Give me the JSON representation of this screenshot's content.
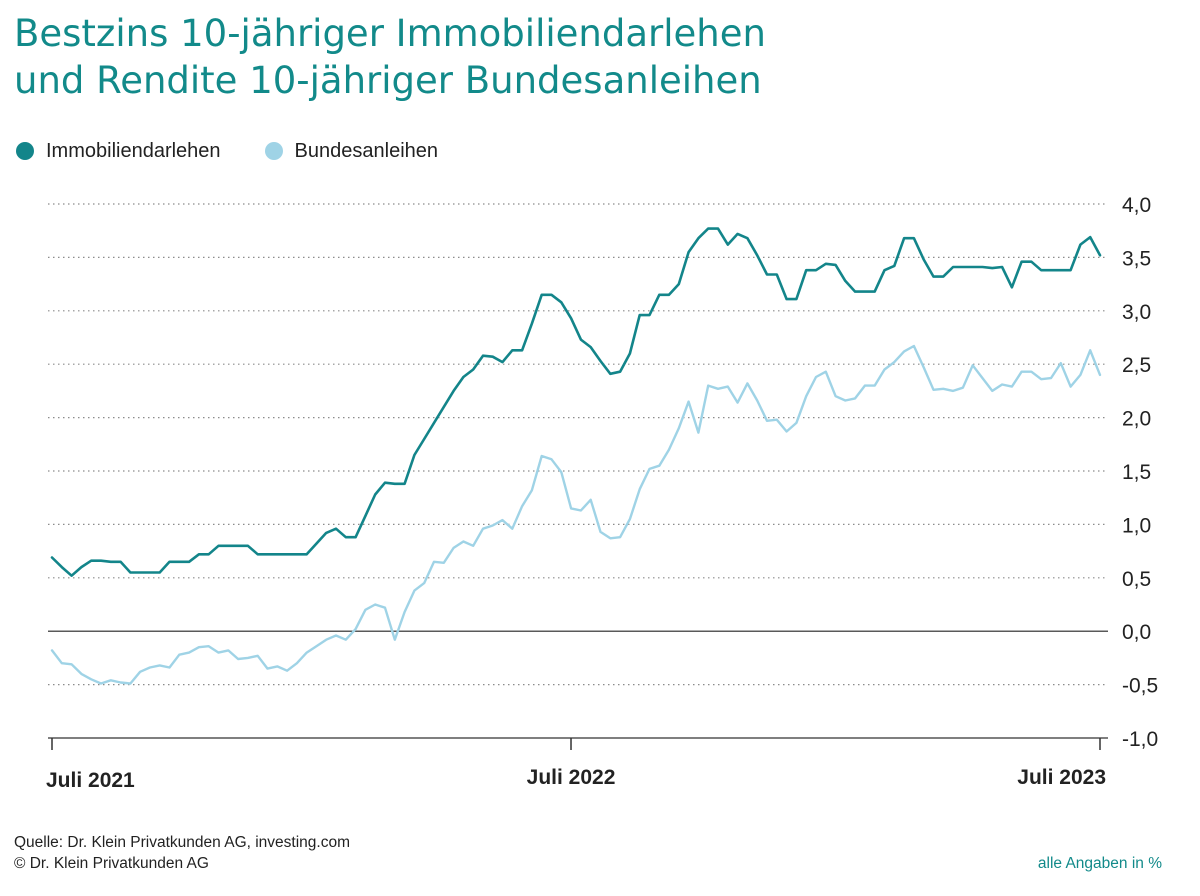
{
  "title": {
    "line1": "Bestzins 10-jähriger Immobiliendarlehen",
    "line2": "und Rendite 10-jähriger Bundesanleihen"
  },
  "colors": {
    "title": "#128a8a",
    "series_dark": "#13858a",
    "series_light": "#9fd3e6",
    "grid": "#8c8c8c",
    "zero_line": "#222222"
  },
  "footer": {
    "source": "Quelle: Dr. Klein Privatkunden AG, investing.com",
    "copyright": "© Dr. Klein Privatkunden AG",
    "unit_note": "alle Angaben in %"
  },
  "chart_data": {
    "type": "line",
    "legend_position": "top-left",
    "grid": "horizontal dotted",
    "x_ticks": [
      {
        "label": "Juli 2021",
        "week": 0
      },
      {
        "label": "Juli 2022",
        "week": 52
      },
      {
        "label": "Juli 2023",
        "week": 105
      }
    ],
    "y_ticks": [
      "4,0",
      "3,5",
      "3,0",
      "2,5",
      "2,0",
      "1,5",
      "1,0",
      "0,5",
      "0,0",
      "-0,5",
      "-1,0"
    ],
    "ylim": [
      -1.0,
      4.0
    ],
    "xlim": [
      0,
      105
    ],
    "series": [
      {
        "name": "Immobiliendarlehen",
        "color": "#13858a",
        "points": [
          [
            0,
            0.69
          ],
          [
            1,
            0.6
          ],
          [
            2,
            0.52
          ],
          [
            3,
            0.6
          ],
          [
            4,
            0.66
          ],
          [
            5,
            0.66
          ],
          [
            6,
            0.65
          ],
          [
            7,
            0.65
          ],
          [
            8,
            0.55
          ],
          [
            9,
            0.55
          ],
          [
            10,
            0.55
          ],
          [
            11,
            0.55
          ],
          [
            12,
            0.65
          ],
          [
            13,
            0.65
          ],
          [
            14,
            0.65
          ],
          [
            15,
            0.72
          ],
          [
            16,
            0.72
          ],
          [
            17,
            0.8
          ],
          [
            18,
            0.8
          ],
          [
            19,
            0.8
          ],
          [
            20,
            0.8
          ],
          [
            21,
            0.72
          ],
          [
            22,
            0.72
          ],
          [
            23,
            0.72
          ],
          [
            24,
            0.72
          ],
          [
            25,
            0.72
          ],
          [
            26,
            0.72
          ],
          [
            27,
            0.82
          ],
          [
            28,
            0.92
          ],
          [
            29,
            0.96
          ],
          [
            30,
            0.88
          ],
          [
            31,
            0.88
          ],
          [
            32,
            1.08
          ],
          [
            33,
            1.28
          ],
          [
            34,
            1.39
          ],
          [
            35,
            1.38
          ],
          [
            36,
            1.38
          ],
          [
            37,
            1.65
          ],
          [
            38,
            1.8
          ],
          [
            39,
            1.95
          ],
          [
            40,
            2.1
          ],
          [
            41,
            2.25
          ],
          [
            42,
            2.38
          ],
          [
            43,
            2.45
          ],
          [
            44,
            2.58
          ],
          [
            45,
            2.57
          ],
          [
            46,
            2.52
          ],
          [
            47,
            2.63
          ],
          [
            48,
            2.63
          ],
          [
            49,
            2.88
          ],
          [
            50,
            3.15
          ],
          [
            51,
            3.15
          ],
          [
            52,
            3.08
          ],
          [
            53,
            2.93
          ],
          [
            54,
            2.73
          ],
          [
            55,
            2.66
          ],
          [
            56,
            2.53
          ],
          [
            57,
            2.41
          ],
          [
            58,
            2.43
          ],
          [
            59,
            2.6
          ],
          [
            60,
            2.96
          ],
          [
            61,
            2.96
          ],
          [
            62,
            3.15
          ],
          [
            63,
            3.15
          ],
          [
            64,
            3.25
          ],
          [
            65,
            3.55
          ],
          [
            66,
            3.68
          ],
          [
            67,
            3.77
          ],
          [
            68,
            3.77
          ],
          [
            69,
            3.62
          ],
          [
            70,
            3.72
          ],
          [
            71,
            3.68
          ],
          [
            72,
            3.52
          ],
          [
            73,
            3.34
          ],
          [
            74,
            3.34
          ],
          [
            75,
            3.11
          ],
          [
            76,
            3.11
          ],
          [
            77,
            3.38
          ],
          [
            78,
            3.38
          ],
          [
            79,
            3.44
          ],
          [
            80,
            3.43
          ],
          [
            81,
            3.28
          ],
          [
            82,
            3.18
          ],
          [
            83,
            3.18
          ],
          [
            84,
            3.18
          ],
          [
            85,
            3.38
          ],
          [
            86,
            3.42
          ],
          [
            87,
            3.68
          ],
          [
            88,
            3.68
          ],
          [
            89,
            3.48
          ],
          [
            90,
            3.32
          ],
          [
            91,
            3.32
          ],
          [
            92,
            3.41
          ],
          [
            93,
            3.41
          ],
          [
            94,
            3.41
          ],
          [
            95,
            3.41
          ],
          [
            96,
            3.4
          ],
          [
            97,
            3.41
          ],
          [
            98,
            3.22
          ],
          [
            99,
            3.46
          ],
          [
            100,
            3.46
          ],
          [
            101,
            3.38
          ],
          [
            102,
            3.38
          ],
          [
            103,
            3.38
          ],
          [
            104,
            3.38
          ],
          [
            105,
            3.62
          ],
          [
            106,
            3.69
          ],
          [
            107,
            3.52
          ]
        ]
      },
      {
        "name": "Bundesanleihen",
        "color": "#9fd3e6",
        "points": [
          [
            0,
            -0.18
          ],
          [
            1,
            -0.3
          ],
          [
            2,
            -0.31
          ],
          [
            3,
            -0.4
          ],
          [
            4,
            -0.45
          ],
          [
            5,
            -0.49
          ],
          [
            6,
            -0.46
          ],
          [
            7,
            -0.48
          ],
          [
            8,
            -0.49
          ],
          [
            9,
            -0.38
          ],
          [
            10,
            -0.34
          ],
          [
            11,
            -0.32
          ],
          [
            12,
            -0.34
          ],
          [
            13,
            -0.22
          ],
          [
            14,
            -0.2
          ],
          [
            15,
            -0.15
          ],
          [
            16,
            -0.14
          ],
          [
            17,
            -0.2
          ],
          [
            18,
            -0.18
          ],
          [
            19,
            -0.26
          ],
          [
            20,
            -0.25
          ],
          [
            21,
            -0.23
          ],
          [
            22,
            -0.35
          ],
          [
            23,
            -0.33
          ],
          [
            24,
            -0.37
          ],
          [
            25,
            -0.3
          ],
          [
            26,
            -0.2
          ],
          [
            27,
            -0.14
          ],
          [
            28,
            -0.08
          ],
          [
            29,
            -0.04
          ],
          [
            30,
            -0.08
          ],
          [
            31,
            0.02
          ],
          [
            32,
            0.2
          ],
          [
            33,
            0.25
          ],
          [
            34,
            0.22
          ],
          [
            35,
            -0.08
          ],
          [
            36,
            0.18
          ],
          [
            37,
            0.38
          ],
          [
            38,
            0.45
          ],
          [
            39,
            0.65
          ],
          [
            40,
            0.64
          ],
          [
            41,
            0.78
          ],
          [
            42,
            0.84
          ],
          [
            43,
            0.8
          ],
          [
            44,
            0.96
          ],
          [
            45,
            0.99
          ],
          [
            46,
            1.04
          ],
          [
            47,
            0.96
          ],
          [
            48,
            1.17
          ],
          [
            49,
            1.32
          ],
          [
            50,
            1.64
          ],
          [
            51,
            1.61
          ],
          [
            52,
            1.49
          ],
          [
            53,
            1.15
          ],
          [
            54,
            1.13
          ],
          [
            55,
            1.23
          ],
          [
            56,
            0.93
          ],
          [
            57,
            0.87
          ],
          [
            58,
            0.88
          ],
          [
            59,
            1.05
          ],
          [
            60,
            1.33
          ],
          [
            61,
            1.52
          ],
          [
            62,
            1.55
          ],
          [
            63,
            1.7
          ],
          [
            64,
            1.9
          ],
          [
            65,
            2.15
          ],
          [
            66,
            1.86
          ],
          [
            67,
            2.3
          ],
          [
            68,
            2.27
          ],
          [
            69,
            2.29
          ],
          [
            70,
            2.14
          ],
          [
            71,
            2.32
          ],
          [
            72,
            2.16
          ],
          [
            73,
            1.97
          ],
          [
            74,
            1.98
          ],
          [
            75,
            1.87
          ],
          [
            76,
            1.95
          ],
          [
            77,
            2.2
          ],
          [
            78,
            2.38
          ],
          [
            79,
            2.43
          ],
          [
            80,
            2.2
          ],
          [
            81,
            2.16
          ],
          [
            82,
            2.18
          ],
          [
            83,
            2.3
          ],
          [
            84,
            2.3
          ],
          [
            85,
            2.45
          ],
          [
            86,
            2.52
          ],
          [
            87,
            2.62
          ],
          [
            88,
            2.67
          ],
          [
            89,
            2.47
          ],
          [
            90,
            2.26
          ],
          [
            91,
            2.27
          ],
          [
            92,
            2.25
          ],
          [
            93,
            2.28
          ],
          [
            94,
            2.49
          ],
          [
            95,
            2.37
          ],
          [
            96,
            2.25
          ],
          [
            97,
            2.31
          ],
          [
            98,
            2.29
          ],
          [
            99,
            2.43
          ],
          [
            100,
            2.43
          ],
          [
            101,
            2.36
          ],
          [
            102,
            2.37
          ],
          [
            103,
            2.51
          ],
          [
            104,
            2.29
          ],
          [
            105,
            2.4
          ],
          [
            106,
            2.63
          ],
          [
            107,
            2.4
          ]
        ]
      }
    ]
  }
}
